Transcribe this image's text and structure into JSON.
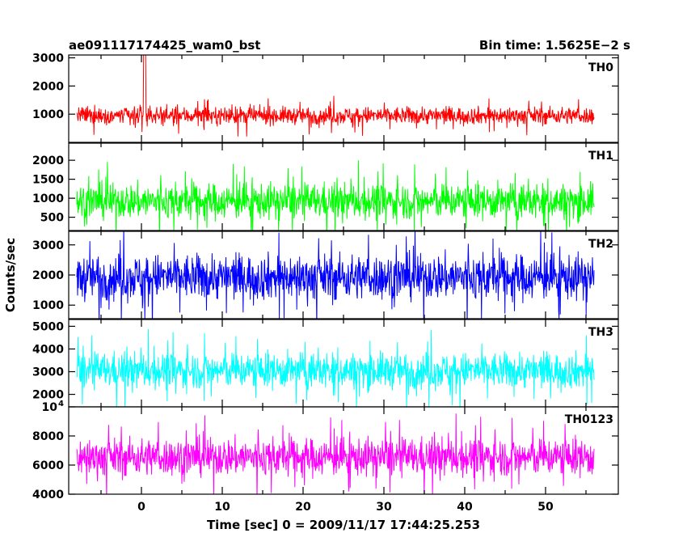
{
  "header": {
    "left": "ae091117174425_wam0_bst",
    "right": "Bin time: 1.5625E−2 s"
  },
  "chart_data": {
    "type": "line",
    "xlabel": "Time [sec] 0 = 2009/11/17 17:44:25.253",
    "ylabel": "Counts/sec",
    "xlim": [
      -9,
      59
    ],
    "x_ticks": [
      0,
      10,
      20,
      30,
      40,
      50
    ],
    "x_range": [
      -8,
      56
    ],
    "panels": [
      {
        "name": "TH0",
        "color": "#ff0000",
        "ylim": [
          0,
          3100
        ],
        "y_ticks": [
          {
            "v": 1000,
            "label": "1000"
          },
          {
            "v": 2000,
            "label": "2000"
          },
          {
            "v": 3000,
            "label": "3000"
          }
        ],
        "mean": 950,
        "amp": 430,
        "burst": {
          "t": 0.4,
          "peak": 3100
        }
      },
      {
        "name": "TH1",
        "color": "#00ff00",
        "ylim": [
          150,
          2450
        ],
        "y_ticks": [
          {
            "v": 500,
            "label": "500"
          },
          {
            "v": 1000,
            "label": "1000"
          },
          {
            "v": 1500,
            "label": "1500"
          },
          {
            "v": 2000,
            "label": "2000"
          }
        ],
        "mean": 920,
        "amp": 650
      },
      {
        "name": "TH2",
        "color": "#0000ff",
        "ylim": [
          550,
          3450
        ],
        "y_ticks": [
          {
            "v": 1000,
            "label": "1000"
          },
          {
            "v": 2000,
            "label": "2000"
          },
          {
            "v": 3000,
            "label": "3000"
          }
        ],
        "mean": 1930,
        "amp": 1050
      },
      {
        "name": "TH3",
        "color": "#00ffff",
        "ylim": [
          1450,
          5300
        ],
        "y_ticks": [
          {
            "v": 2000,
            "label": "2000"
          },
          {
            "v": 3000,
            "label": "3000"
          },
          {
            "v": 4000,
            "label": "4000"
          },
          {
            "v": 5000,
            "label": "5000"
          }
        ],
        "mean": 3050,
        "amp": 1100
      },
      {
        "name": "TH0123",
        "color": "#ff00ff",
        "ylim": [
          4000,
          10000
        ],
        "y_ticks": [
          {
            "v": 4000,
            "label": "4000"
          },
          {
            "v": 6000,
            "label": "6000"
          },
          {
            "v": 8000,
            "label": "8000"
          },
          {
            "v": 10000,
            "label": "10",
            "sup": "4"
          }
        ],
        "mean": 6550,
        "amp": 1800
      }
    ]
  }
}
